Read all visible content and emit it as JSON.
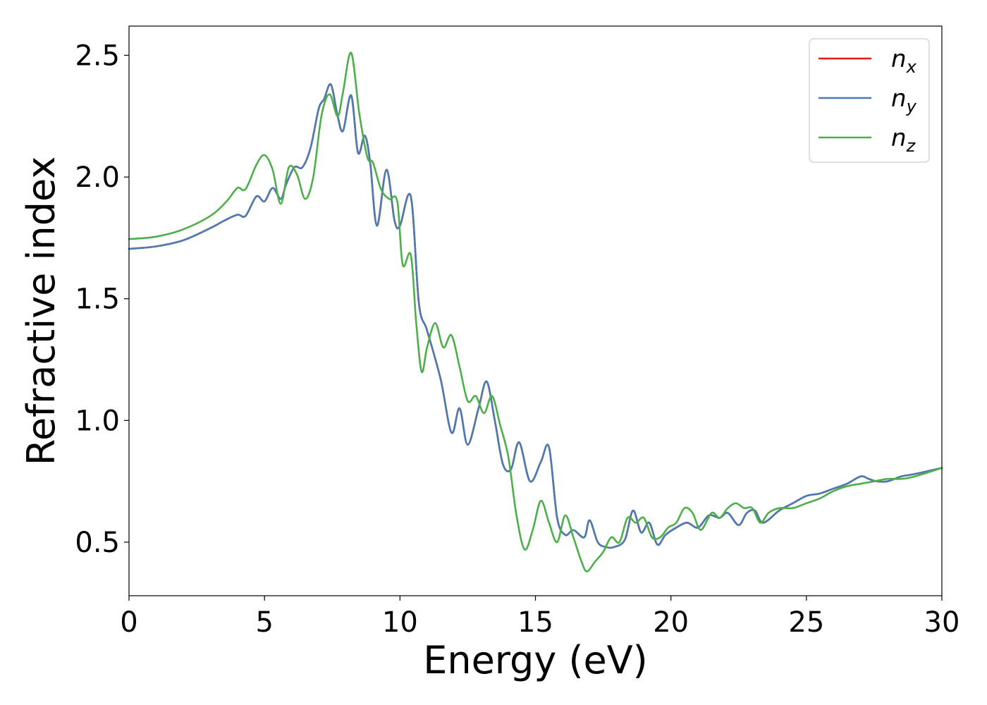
{
  "chart_data": {
    "type": "line",
    "xlabel": "Energy (eV)",
    "ylabel": "Refractive index",
    "xlim": [
      0,
      30
    ],
    "ylim": [
      0.28,
      2.62
    ],
    "xticks": [
      0,
      5,
      10,
      15,
      20,
      25,
      30
    ],
    "xtick_labels": [
      "0",
      "5",
      "10",
      "15",
      "20",
      "25",
      "30"
    ],
    "yticks": [
      0.5,
      1.0,
      1.5,
      2.0,
      2.5
    ],
    "ytick_labels": [
      "0.5",
      "1.0",
      "1.5",
      "2.0",
      "2.5"
    ],
    "grid": false,
    "legend_position": "top-right",
    "series": [
      {
        "name": "n",
        "subscript": "x",
        "color": "#e41a1c",
        "x": [
          0,
          1,
          2,
          3,
          3.5,
          4,
          4.3,
          4.7,
          5.0,
          5.3,
          5.6,
          5.8,
          6.1,
          6.4,
          6.7,
          7.0,
          7.2,
          7.45,
          7.7,
          7.9,
          8.2,
          8.45,
          8.7,
          8.9,
          9.15,
          9.5,
          9.8,
          10.0,
          10.4,
          10.7,
          11.0,
          11.5,
          11.9,
          12.2,
          12.5,
          12.9,
          13.2,
          13.5,
          13.8,
          14.1,
          14.4,
          14.8,
          15.2,
          15.5,
          15.8,
          16.1,
          16.4,
          16.8,
          17.0,
          17.3,
          17.6,
          17.9,
          18.3,
          18.6,
          18.9,
          19.2,
          19.5,
          19.8,
          20.2,
          20.6,
          21.0,
          21.4,
          21.8,
          22.1,
          22.5,
          22.8,
          23.1,
          23.4,
          24.0,
          24.5,
          25.0,
          25.5,
          26.0,
          26.5,
          27.0,
          27.3,
          27.6,
          28.0,
          28.5,
          29.0,
          30.0
        ],
        "values": [
          1.705,
          1.715,
          1.74,
          1.79,
          1.82,
          1.845,
          1.84,
          1.92,
          1.9,
          1.955,
          1.91,
          1.97,
          2.04,
          2.04,
          2.12,
          2.28,
          2.32,
          2.38,
          2.25,
          2.19,
          2.335,
          2.1,
          2.17,
          2.06,
          1.8,
          2.03,
          1.82,
          1.8,
          1.92,
          1.48,
          1.37,
          1.17,
          0.95,
          1.05,
          0.9,
          1.05,
          1.16,
          1.0,
          0.82,
          0.8,
          0.91,
          0.75,
          0.83,
          0.89,
          0.6,
          0.53,
          0.55,
          0.52,
          0.59,
          0.5,
          0.48,
          0.48,
          0.51,
          0.63,
          0.54,
          0.58,
          0.49,
          0.53,
          0.56,
          0.58,
          0.56,
          0.61,
          0.6,
          0.62,
          0.57,
          0.62,
          0.63,
          0.58,
          0.63,
          0.66,
          0.69,
          0.7,
          0.72,
          0.74,
          0.77,
          0.76,
          0.75,
          0.75,
          0.77,
          0.78,
          0.805
        ]
      },
      {
        "name": "n",
        "subscript": "y",
        "color": "#4a7cb3",
        "x": [
          0,
          1,
          2,
          3,
          3.5,
          4,
          4.3,
          4.7,
          5.0,
          5.3,
          5.6,
          5.8,
          6.1,
          6.4,
          6.7,
          7.0,
          7.2,
          7.45,
          7.7,
          7.9,
          8.2,
          8.45,
          8.7,
          8.9,
          9.15,
          9.5,
          9.8,
          10.0,
          10.4,
          10.7,
          11.0,
          11.5,
          11.9,
          12.2,
          12.5,
          12.9,
          13.2,
          13.5,
          13.8,
          14.1,
          14.4,
          14.8,
          15.2,
          15.5,
          15.8,
          16.1,
          16.4,
          16.8,
          17.0,
          17.3,
          17.6,
          17.9,
          18.3,
          18.6,
          18.9,
          19.2,
          19.5,
          19.8,
          20.2,
          20.6,
          21.0,
          21.4,
          21.8,
          22.1,
          22.5,
          22.8,
          23.1,
          23.4,
          24.0,
          24.5,
          25.0,
          25.5,
          26.0,
          26.5,
          27.0,
          27.3,
          27.6,
          28.0,
          28.5,
          29.0,
          30.0
        ],
        "values": [
          1.705,
          1.715,
          1.74,
          1.79,
          1.82,
          1.845,
          1.84,
          1.92,
          1.9,
          1.955,
          1.91,
          1.97,
          2.04,
          2.04,
          2.12,
          2.28,
          2.32,
          2.38,
          2.25,
          2.19,
          2.335,
          2.1,
          2.17,
          2.06,
          1.8,
          2.03,
          1.82,
          1.8,
          1.92,
          1.48,
          1.37,
          1.17,
          0.95,
          1.05,
          0.9,
          1.05,
          1.16,
          1.0,
          0.82,
          0.8,
          0.91,
          0.75,
          0.83,
          0.89,
          0.6,
          0.53,
          0.55,
          0.52,
          0.59,
          0.5,
          0.48,
          0.48,
          0.51,
          0.63,
          0.54,
          0.58,
          0.49,
          0.53,
          0.56,
          0.58,
          0.56,
          0.61,
          0.6,
          0.62,
          0.57,
          0.62,
          0.63,
          0.58,
          0.63,
          0.66,
          0.69,
          0.7,
          0.72,
          0.74,
          0.77,
          0.76,
          0.75,
          0.75,
          0.77,
          0.78,
          0.805
        ]
      },
      {
        "name": "n",
        "subscript": "z",
        "color": "#4daf4a",
        "x": [
          0,
          1,
          2,
          3,
          3.6,
          4.0,
          4.3,
          4.7,
          5.0,
          5.3,
          5.6,
          5.9,
          6.2,
          6.5,
          6.8,
          7.1,
          7.4,
          7.7,
          7.9,
          8.2,
          8.5,
          8.8,
          9.0,
          9.3,
          9.6,
          9.9,
          10.1,
          10.4,
          10.6,
          10.8,
          11.0,
          11.3,
          11.6,
          11.9,
          12.2,
          12.5,
          12.8,
          13.1,
          13.4,
          13.7,
          14.0,
          14.3,
          14.6,
          14.9,
          15.2,
          15.5,
          15.8,
          16.1,
          16.4,
          16.7,
          16.9,
          17.2,
          17.5,
          17.8,
          18.1,
          18.4,
          18.7,
          19.0,
          19.3,
          19.6,
          19.9,
          20.2,
          20.5,
          20.8,
          21.1,
          21.5,
          21.8,
          22.1,
          22.4,
          22.7,
          23.0,
          23.3,
          23.6,
          24.0,
          24.5,
          25.0,
          25.5,
          26.0,
          26.5,
          27.0,
          27.5,
          28.0,
          28.5,
          29.0,
          30.0
        ],
        "values": [
          1.745,
          1.755,
          1.785,
          1.84,
          1.9,
          1.955,
          1.95,
          2.05,
          2.09,
          2.03,
          1.89,
          2.04,
          2.01,
          1.91,
          2.0,
          2.25,
          2.34,
          2.25,
          2.35,
          2.51,
          2.26,
          2.08,
          2.06,
          1.95,
          1.91,
          1.9,
          1.64,
          1.68,
          1.4,
          1.2,
          1.3,
          1.4,
          1.3,
          1.35,
          1.22,
          1.08,
          1.1,
          1.03,
          1.1,
          0.98,
          0.85,
          0.61,
          0.47,
          0.55,
          0.67,
          0.58,
          0.5,
          0.61,
          0.52,
          0.42,
          0.38,
          0.42,
          0.46,
          0.52,
          0.5,
          0.6,
          0.58,
          0.6,
          0.52,
          0.52,
          0.56,
          0.58,
          0.64,
          0.62,
          0.55,
          0.62,
          0.6,
          0.64,
          0.66,
          0.64,
          0.64,
          0.58,
          0.62,
          0.64,
          0.64,
          0.66,
          0.68,
          0.71,
          0.73,
          0.74,
          0.75,
          0.76,
          0.76,
          0.77,
          0.805
        ]
      }
    ]
  }
}
